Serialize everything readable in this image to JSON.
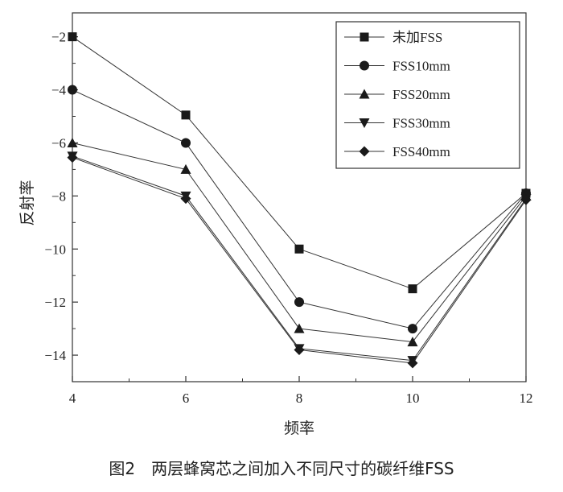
{
  "chart_data": {
    "type": "line",
    "x": [
      4,
      6,
      8,
      10,
      12
    ],
    "xlabel": "频率",
    "ylabel": "反射率",
    "xlim": [
      4,
      12
    ],
    "ylim": [
      -15,
      -1.1
    ],
    "xticks": [
      4,
      6,
      8,
      10,
      12
    ],
    "yticks": [
      -2,
      -4,
      -6,
      -8,
      -10,
      -12,
      -14
    ],
    "grid": false,
    "legend_position": "top-right",
    "series": [
      {
        "name": "未加FSS",
        "marker": "square",
        "values": [
          -2.0,
          -4.95,
          -10.0,
          -11.5,
          -7.9
        ]
      },
      {
        "name": "FSS10mm",
        "marker": "circle",
        "values": [
          -4.0,
          -6.0,
          -12.0,
          -13.0,
          -7.9
        ]
      },
      {
        "name": "FSS20mm",
        "marker": "triangle-up",
        "values": [
          -6.0,
          -7.0,
          -13.0,
          -13.5,
          -8.0
        ]
      },
      {
        "name": "FSS30mm",
        "marker": "triangle-down",
        "values": [
          -6.5,
          -8.0,
          -13.75,
          -14.2,
          -8.1
        ]
      },
      {
        "name": "FSS40mm",
        "marker": "diamond",
        "values": [
          -6.55,
          -8.1,
          -13.8,
          -14.3,
          -8.15
        ]
      }
    ]
  },
  "caption": "图2　两层蜂窝芯之间加入不同尺寸的碳纤维FSS"
}
